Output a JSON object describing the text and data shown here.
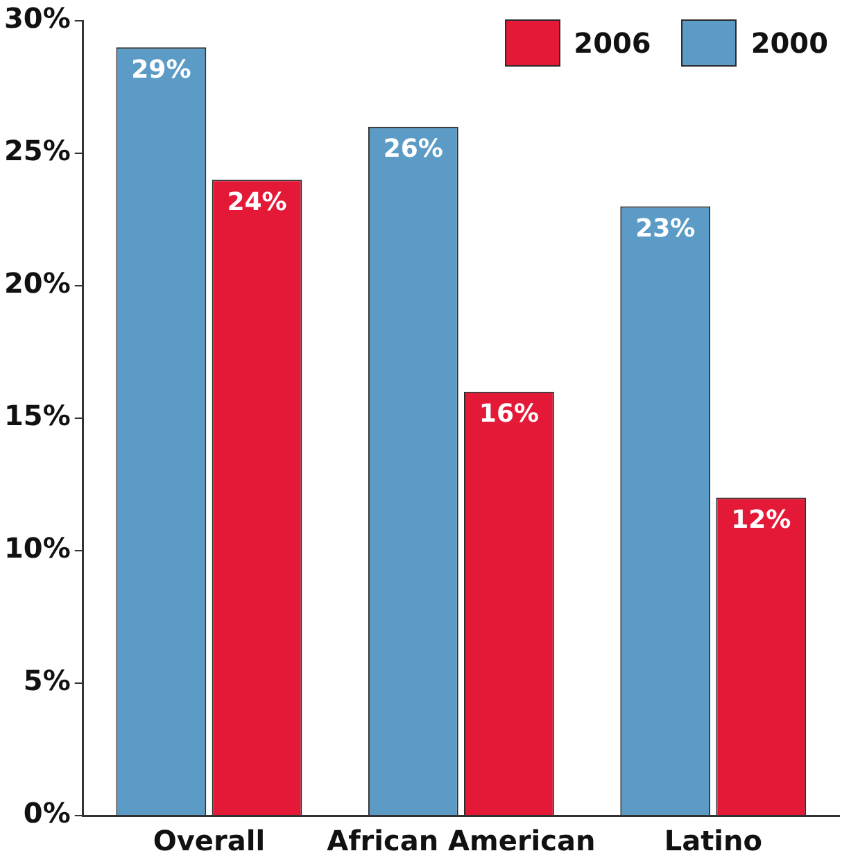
{
  "chart_data": {
    "type": "bar",
    "categories": [
      "Overall",
      "African American",
      "Latino"
    ],
    "series": [
      {
        "name": "2000",
        "color": "#5b9bc6",
        "values": [
          29,
          26,
          23
        ],
        "value_labels": [
          "29%",
          "26%",
          "23%"
        ]
      },
      {
        "name": "2006",
        "color": "#e31937",
        "values": [
          24,
          16,
          12
        ],
        "value_labels": [
          "24%",
          "16%",
          "12%"
        ]
      }
    ],
    "ylim": [
      0,
      30
    ],
    "yticks": [
      {
        "value": 0,
        "label": "0%"
      },
      {
        "value": 5,
        "label": "5%"
      },
      {
        "value": 10,
        "label": "10%"
      },
      {
        "value": 15,
        "label": "15%"
      },
      {
        "value": 20,
        "label": "20%"
      },
      {
        "value": 25,
        "label": "25%"
      },
      {
        "value": 30,
        "label": "30%"
      }
    ],
    "grid": false,
    "legend": "top right"
  }
}
